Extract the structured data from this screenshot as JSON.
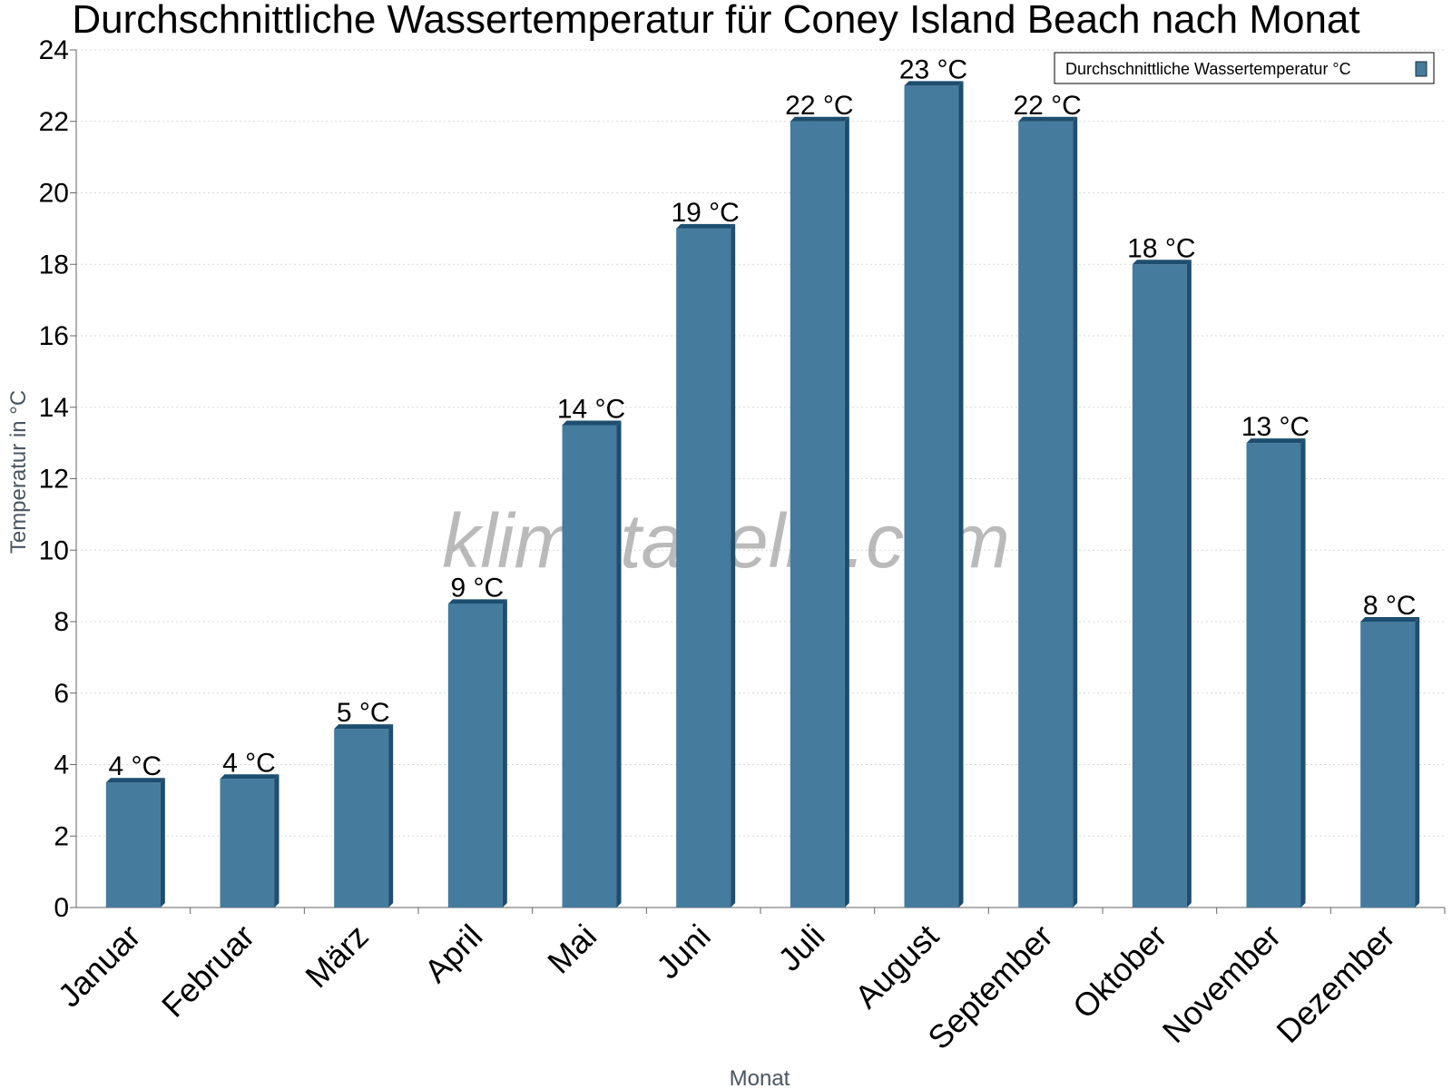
{
  "chart_data": {
    "type": "bar",
    "title": "Durchschnittliche Wassertemperatur für Coney Island Beach nach Monat",
    "xlabel": "Monat",
    "ylabel": "Temperatur in °C",
    "ylim": [
      0,
      24
    ],
    "yticks": [
      0,
      2,
      4,
      6,
      8,
      10,
      12,
      14,
      16,
      18,
      20,
      22,
      24
    ],
    "grid": true,
    "legend_position": "top-right",
    "watermark": "klimatabelle.com",
    "colors": {
      "bar": "#457b9d",
      "bar_side": "#1d4e6f",
      "bar_top": "#1d4e6f",
      "grid": "#d8d8d8",
      "axis": "#666666"
    },
    "categories": [
      "Januar",
      "Februar",
      "März",
      "April",
      "Mai",
      "Juni",
      "Juli",
      "August",
      "September",
      "Oktober",
      "November",
      "Dezember"
    ],
    "series": [
      {
        "name": "Durchschnittliche Wassertemperatur °C",
        "values": [
          3.5,
          3.6,
          5.0,
          8.5,
          13.5,
          19.0,
          22.0,
          23.0,
          22.0,
          18.0,
          13.0,
          8.0
        ],
        "labels": [
          "4 °C",
          "4 °C",
          "5 °C",
          "9 °C",
          "14 °C",
          "19 °C",
          "22 °C",
          "23 °C",
          "22 °C",
          "18 °C",
          "13 °C",
          "8 °C"
        ]
      }
    ]
  }
}
